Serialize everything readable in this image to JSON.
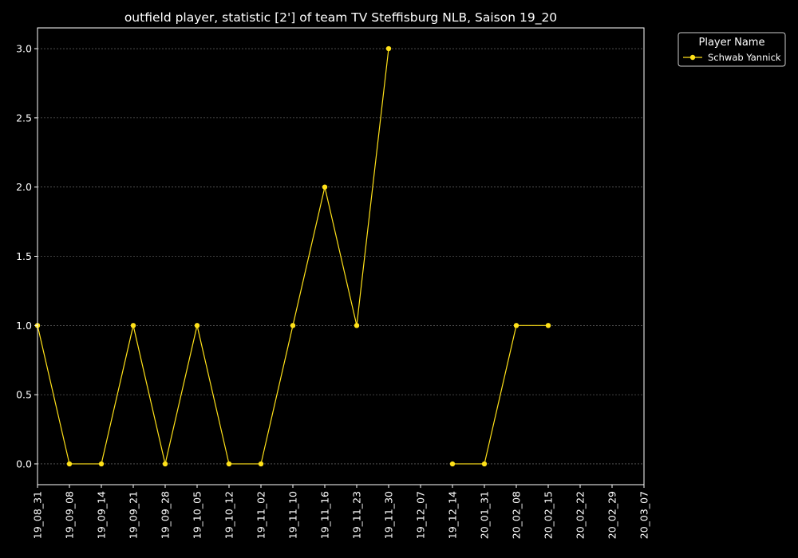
{
  "chart_data": {
    "type": "line",
    "title": "outfield player, statistic [2'] of team TV Steffisburg NLB, Saison 19_20",
    "xlabel": "",
    "ylabel": "",
    "categories": [
      "19_08_31",
      "19_09_08",
      "19_09_14",
      "19_09_21",
      "19_09_28",
      "19_10_05",
      "19_10_12",
      "19_11_02",
      "19_11_10",
      "19_11_16",
      "19_11_23",
      "19_11_30",
      "19_12_07",
      "19_12_14",
      "20_01_31",
      "20_02_08",
      "20_02_15",
      "20_02_22",
      "20_02_29",
      "20_03_07"
    ],
    "yticks": [
      "0.0",
      "0.5",
      "1.0",
      "1.5",
      "2.0",
      "2.5",
      "3.0"
    ],
    "ylim": [
      -0.15,
      3.15
    ],
    "grid": true,
    "legend": {
      "title": "Player Name",
      "placement": "outside-top-right"
    },
    "series": [
      {
        "name": "Schwab Yannick",
        "color": "#ffe119",
        "values": [
          1,
          0,
          0,
          1,
          0,
          1,
          0,
          0,
          1,
          2,
          1,
          3,
          null,
          0,
          0,
          1,
          1,
          null,
          null,
          null
        ]
      }
    ],
    "colors": {
      "background": "#000000",
      "axes": "#ffffff",
      "grid": "#808080",
      "text": "#ffffff"
    }
  }
}
